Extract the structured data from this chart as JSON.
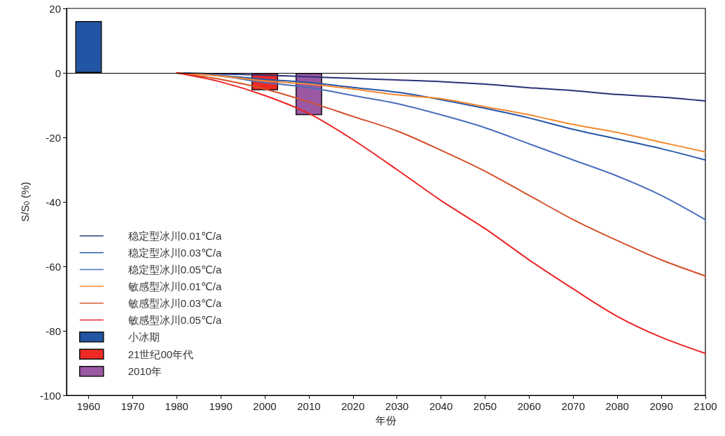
{
  "chart_data": {
    "type": "line",
    "xlabel": "年份",
    "ylabel": "S/S$_{0}$ (%)",
    "xlim": [
      1955,
      2100
    ],
    "xticks": [
      1960,
      1970,
      1980,
      1990,
      2000,
      2010,
      2020,
      2030,
      2040,
      2050,
      2060,
      2070,
      2080,
      2090,
      2100
    ],
    "ylim": [
      -100,
      20
    ],
    "yticks": [
      -100,
      -80,
      -60,
      -40,
      -20,
      0,
      20
    ],
    "legend": "left",
    "marker": "none",
    "line_style": "solid",
    "ref_lines": [
      {
        "axis": "y",
        "value": 0,
        "color": "#000000"
      }
    ],
    "series": [
      {
        "name": "稳定型冰川0.01℃/a",
        "color": "#2b3278",
        "x": [
          1980,
          1990,
          2000,
          2010,
          2020,
          2030,
          2040,
          2050,
          2060,
          2070,
          2080,
          2090,
          2100
        ],
        "values": [
          0,
          -0.3,
          -0.7,
          -1.2,
          -1.7,
          -2.2,
          -2.7,
          -3.5,
          -4.6,
          -5.5,
          -6.7,
          -7.5,
          -8.7
        ]
      },
      {
        "name": "稳定型冰川0.03℃/a",
        "color": "#2656a8",
        "x": [
          1980,
          1990,
          2000,
          2010,
          2020,
          2030,
          2040,
          2050,
          2060,
          2070,
          2080,
          2090,
          2100
        ],
        "values": [
          0,
          -0.8,
          -2,
          -3,
          -4.5,
          -6,
          -8.3,
          -11,
          -14,
          -17.5,
          -20.5,
          -23.5,
          -27
        ]
      },
      {
        "name": "稳定型冰川0.05℃/a",
        "color": "#4a6fbe",
        "x": [
          1980,
          1990,
          2000,
          2010,
          2020,
          2030,
          2040,
          2050,
          2060,
          2070,
          2080,
          2090,
          2100
        ],
        "values": [
          0,
          -1,
          -3,
          -4.5,
          -7,
          -9.5,
          -13,
          -17,
          -22,
          -27,
          -32,
          -38,
          -45.5
        ]
      },
      {
        "name": "敏感型冰川0.01℃/a",
        "color": "#f58a2e",
        "x": [
          1980,
          1990,
          2000,
          2010,
          2020,
          2030,
          2040,
          2050,
          2060,
          2070,
          2080,
          2090,
          2100
        ],
        "values": [
          0,
          -1,
          -2.5,
          -3.5,
          -5,
          -6.8,
          -8,
          -10.5,
          -13,
          -16,
          -18.5,
          -21.5,
          -24.5
        ]
      },
      {
        "name": "敏感型冰川0.03℃/a",
        "color": "#d4502a",
        "x": [
          1980,
          1990,
          2000,
          2010,
          2020,
          2030,
          2040,
          2050,
          2060,
          2070,
          2080,
          2090,
          2100
        ],
        "values": [
          0,
          -2,
          -5,
          -9,
          -13.5,
          -18,
          -24,
          -30.5,
          -38,
          -45.5,
          -52,
          -58,
          -63
        ]
      },
      {
        "name": "敏感型冰川0.05℃/a",
        "color": "#ee2424",
        "x": [
          1980,
          1990,
          2000,
          2010,
          2020,
          2030,
          2040,
          2050,
          2060,
          2070,
          2080,
          2090,
          2100
        ],
        "values": [
          0,
          -2.8,
          -7,
          -12.6,
          -20.7,
          -30,
          -39.6,
          -48.3,
          -58,
          -67,
          -75.5,
          -82,
          -87
        ]
      },
      {
        "name": "小冰期",
        "type": "bar",
        "color": "#2255a4",
        "x": [
          1960
        ],
        "values": [
          16.1
        ]
      },
      {
        "name": "21世纪00年代",
        "type": "bar",
        "color": "#ee2a24",
        "x": [
          2000
        ],
        "values": [
          -5.4
        ]
      },
      {
        "name": "2010年",
        "type": "bar",
        "color": "#9b59a3",
        "x": [
          2010
        ],
        "values": [
          -13.1
        ]
      }
    ]
  }
}
